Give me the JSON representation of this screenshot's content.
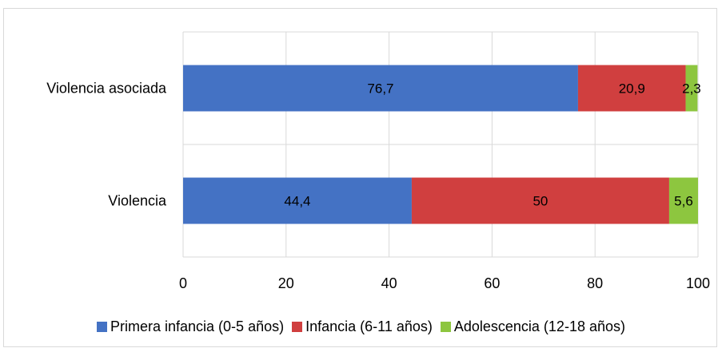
{
  "chart_data": {
    "type": "bar",
    "orientation": "horizontal",
    "stacked": true,
    "categories": [
      "Violencia asociada",
      "Violencia"
    ],
    "series": [
      {
        "name": "Primera infancia (0-5 años)",
        "color": "#4472C4",
        "values": [
          76.7,
          44.4
        ],
        "labels": [
          "76,7",
          "44,4"
        ]
      },
      {
        "name": "Infancia (6-11 años)",
        "color": "#D03F3F",
        "values": [
          20.9,
          50
        ],
        "labels": [
          "20,9",
          "50"
        ]
      },
      {
        "name": "Adolescencia (12-18 años)",
        "color": "#8DC63F",
        "values": [
          2.3,
          5.6
        ],
        "labels": [
          "2,3",
          "5,6"
        ]
      }
    ],
    "xlim": [
      0,
      100
    ],
    "x_ticks": [
      0,
      20,
      40,
      60,
      80,
      100
    ],
    "grid": "vertical",
    "legend_position": "bottom"
  }
}
